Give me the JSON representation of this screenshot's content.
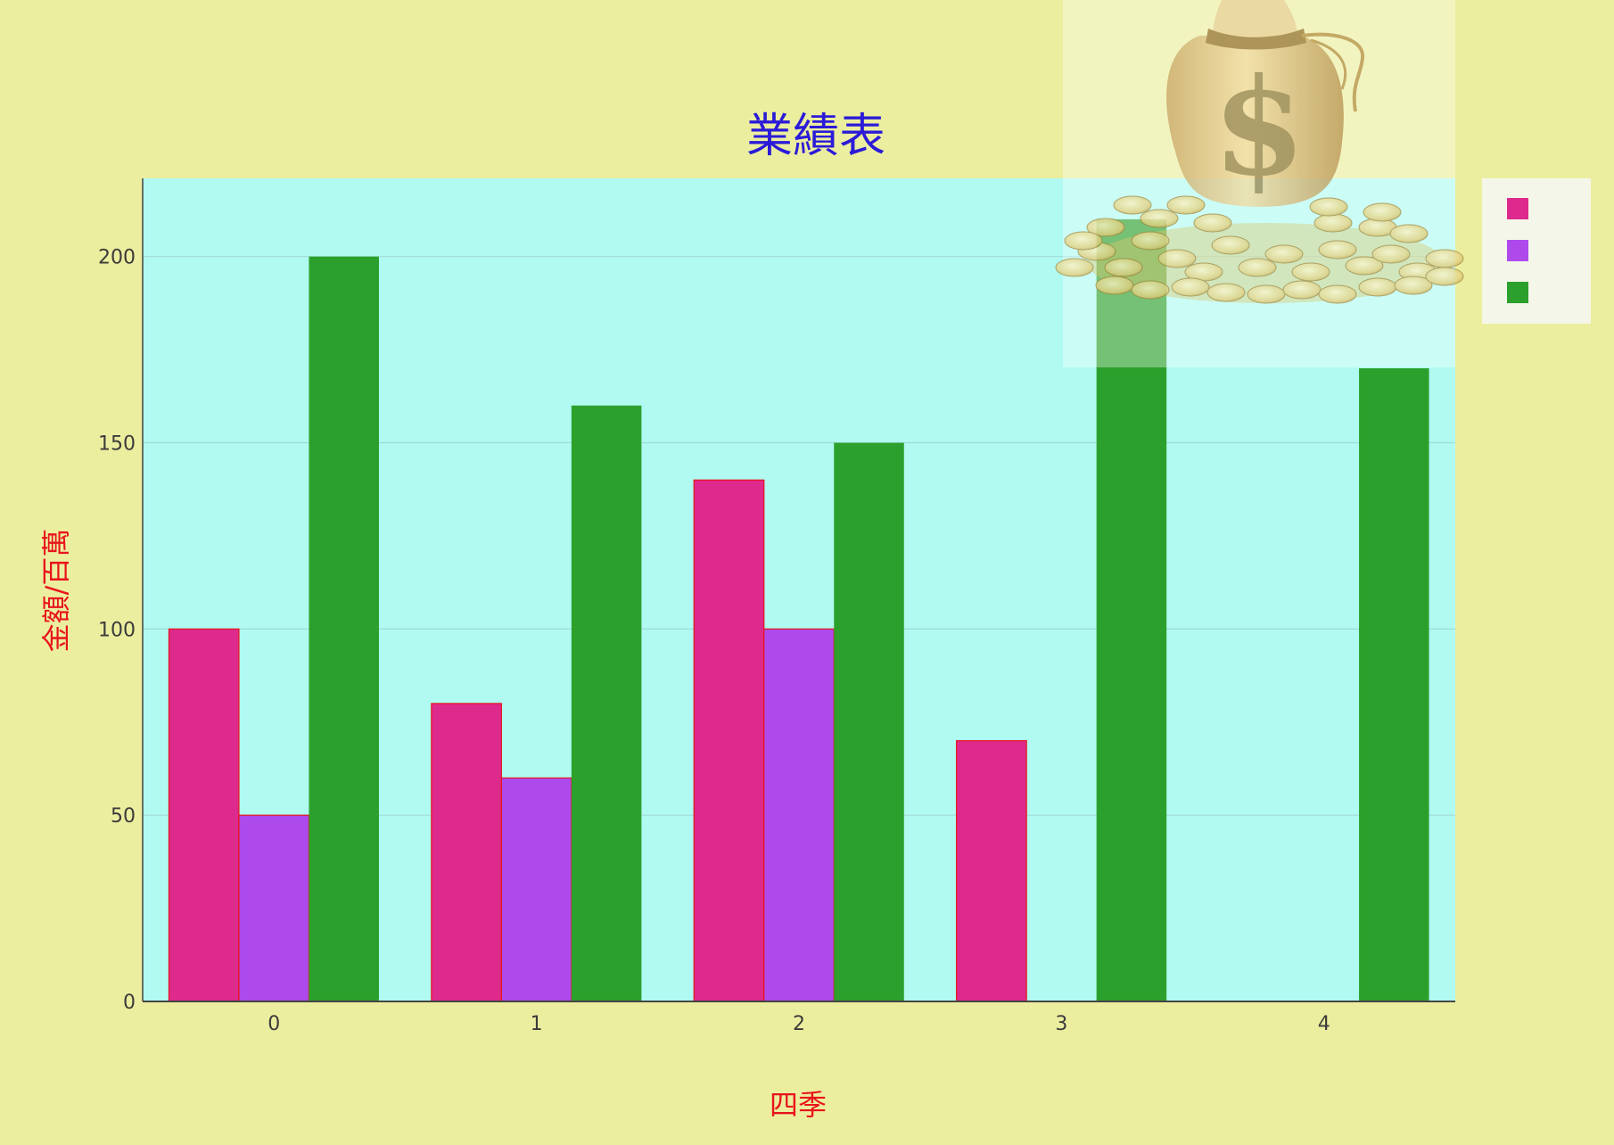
{
  "chart_data": {
    "type": "bar",
    "title": "業績表",
    "xlabel": "四季",
    "ylabel": "金額/百萬",
    "categories": [
      "0",
      "1",
      "2",
      "3",
      "4"
    ],
    "series": [
      {
        "name": "",
        "color": "#dd2a8c",
        "values": [
          100,
          80,
          140,
          70,
          0
        ]
      },
      {
        "name": "",
        "color": "#ae4aec",
        "values": [
          50,
          60,
          100,
          0,
          0
        ]
      },
      {
        "name": "",
        "color": "#2ca02c",
        "values": [
          200,
          160,
          150,
          210,
          170
        ]
      }
    ],
    "ylim": [
      0,
      221
    ],
    "yticks": [
      0,
      50,
      100,
      150,
      200
    ],
    "grid": true,
    "legend_position": "top-right",
    "colors": {
      "paper_bg": "#ecee9f",
      "plot_bg": "#b0faf1",
      "title": "#2b1bd8",
      "axis_title": "#e8141c",
      "bar_outline": "#e8141c"
    },
    "image": {
      "icon": "money-bag-icon"
    }
  }
}
